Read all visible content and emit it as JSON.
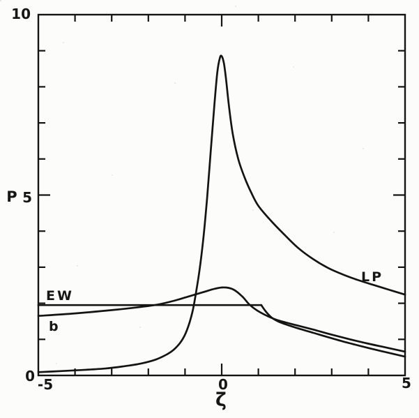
{
  "figure": {
    "background": "#fcfcfa",
    "ink": "#141414"
  },
  "chart_data": {
    "type": "line",
    "title": "",
    "xlabel": "ζ",
    "ylabel": "P",
    "xlim": [
      -5,
      5
    ],
    "ylim": [
      0,
      10
    ],
    "grid": false,
    "frame": "box",
    "legend": "inline-labels",
    "x_tick_labels": [
      {
        "v": -5,
        "t": "-5"
      },
      {
        "v": 0,
        "t": "0"
      },
      {
        "v": 5,
        "t": "5"
      }
    ],
    "y_tick_labels": [
      {
        "v": 0,
        "t": "0"
      },
      {
        "v": 5,
        "t": "5"
      },
      {
        "v": 10,
        "t": "10"
      }
    ],
    "x_major_ticks": [
      0
    ],
    "x_minor_ticks": [
      -4,
      -3,
      -2,
      -1,
      1,
      2,
      3,
      4
    ],
    "y_major_ticks": [
      5
    ],
    "y_minor_ticks": [
      1,
      2,
      3,
      4,
      6,
      7,
      8,
      9
    ],
    "series": [
      {
        "name": "LP",
        "label": "LP",
        "paths": [
          [
            [
              -5,
              0.09
            ],
            [
              -4.4,
              0.12
            ],
            [
              -3.8,
              0.15
            ],
            [
              -3.2,
              0.19
            ],
            [
              -2.7,
              0.25
            ],
            [
              -2.2,
              0.33
            ],
            [
              -1.8,
              0.44
            ],
            [
              -1.5,
              0.58
            ],
            [
              -1.3,
              0.72
            ],
            [
              -1.1,
              0.95
            ],
            [
              -0.95,
              1.25
            ],
            [
              -0.8,
              1.75
            ],
            [
              -0.7,
              2.3
            ],
            [
              -0.6,
              2.95
            ],
            [
              -0.5,
              3.8
            ],
            [
              -0.4,
              4.9
            ],
            [
              -0.3,
              6.2
            ],
            [
              -0.2,
              7.5
            ],
            [
              -0.12,
              8.4
            ],
            [
              -0.05,
              8.8
            ],
            [
              0,
              8.85
            ],
            [
              0.06,
              8.65
            ],
            [
              0.12,
              8.2
            ],
            [
              0.2,
              7.45
            ],
            [
              0.3,
              6.7
            ],
            [
              0.45,
              6.0
            ],
            [
              0.62,
              5.5
            ],
            [
              0.8,
              5.08
            ],
            [
              1.0,
              4.7
            ],
            [
              1.35,
              4.28
            ],
            [
              1.75,
              3.86
            ],
            [
              2.1,
              3.52
            ],
            [
              2.5,
              3.22
            ],
            [
              2.9,
              2.98
            ],
            [
              3.3,
              2.8
            ],
            [
              3.7,
              2.65
            ],
            [
              4.1,
              2.52
            ],
            [
              4.55,
              2.38
            ],
            [
              5,
              2.24
            ]
          ]
        ]
      },
      {
        "name": "EW",
        "label": "EW",
        "paths": [
          [
            [
              -5,
              1.95
            ],
            [
              1.08,
              1.95
            ]
          ],
          [
            [
              1.08,
              1.95
            ],
            [
              1.22,
              1.75
            ],
            [
              1.38,
              1.59
            ],
            [
              1.6,
              1.47
            ],
            [
              2,
              1.33
            ],
            [
              2.5,
              1.18
            ],
            [
              3,
              1.03
            ],
            [
              3.5,
              0.89
            ],
            [
              4,
              0.76
            ],
            [
              4.5,
              0.64
            ],
            [
              5,
              0.52
            ]
          ]
        ]
      },
      {
        "name": "b",
        "label": "b",
        "paths": [
          [
            [
              -5,
              1.65
            ],
            [
              -4,
              1.72
            ],
            [
              -3,
              1.81
            ],
            [
              -2.2,
              1.9
            ],
            [
              -1.77,
              1.96
            ],
            [
              -1.3,
              2.07
            ],
            [
              -0.9,
              2.19
            ],
            [
              -0.5,
              2.31
            ],
            [
              -0.2,
              2.4
            ],
            [
              0.05,
              2.44
            ],
            [
              0.3,
              2.39
            ],
            [
              0.55,
              2.2
            ],
            [
              0.75,
              1.97
            ],
            [
              0.95,
              1.81
            ],
            [
              1.2,
              1.67
            ],
            [
              1.5,
              1.54
            ],
            [
              2,
              1.4
            ],
            [
              2.5,
              1.27
            ],
            [
              3,
              1.13
            ],
            [
              3.5,
              1.0
            ],
            [
              4,
              0.88
            ],
            [
              4.5,
              0.77
            ],
            [
              5,
              0.66
            ]
          ]
        ]
      }
    ]
  }
}
